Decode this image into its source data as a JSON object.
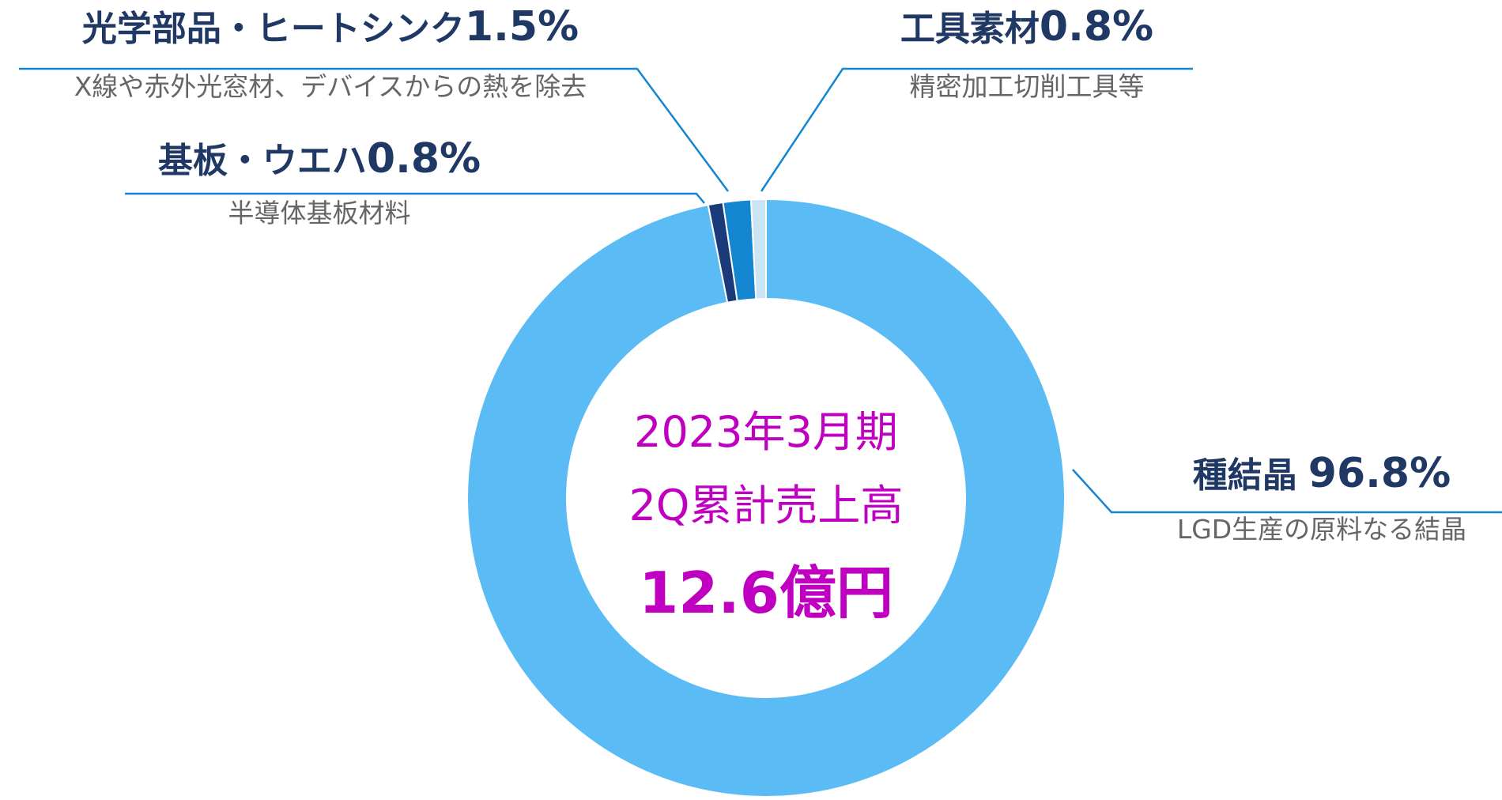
{
  "chart_data": {
    "type": "donut",
    "center_title": [
      "2023年3月期",
      "2Q累計売上高"
    ],
    "total_label": "12.6億円",
    "categories": [
      "種結晶",
      "基板・ウエハ",
      "光学部品・ヒートシンク",
      "工具素材"
    ],
    "descriptions": [
      "LGD生産の原料なる結晶",
      "半導体基板材料",
      "X線や赤外光窓材、デバイスからの熱を除去",
      "精密加工切削工具等"
    ],
    "values": [
      96.8,
      0.8,
      1.5,
      0.8
    ],
    "value_labels": [
      "96.8%",
      "0.8%",
      "1.5%",
      "0.8%"
    ],
    "colors": [
      "#5bbcf5",
      "#1a3a7a",
      "#1485d0",
      "#c8e4f5"
    ]
  }
}
